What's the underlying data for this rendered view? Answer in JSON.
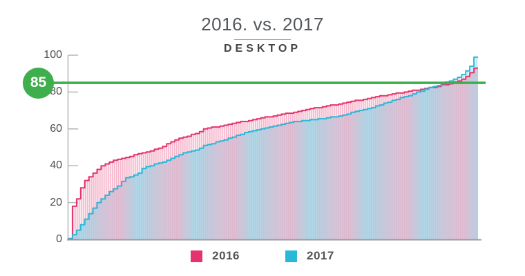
{
  "header": {
    "title": "2016. vs. 2017",
    "subtitle": "DESKTOP"
  },
  "chart_data": {
    "type": "area",
    "subtype": "cumulative-step-comparison-striped-bars",
    "title": "2016. vs. 2017",
    "subtitle": "DESKTOP",
    "xlabel": "",
    "ylabel": "",
    "ylim": [
      0,
      100
    ],
    "grid": false,
    "legend_position": "bottom",
    "y_axis": {
      "ticks": [
        100,
        80,
        60,
        40,
        20,
        0
      ]
    },
    "threshold_line": {
      "value": 85,
      "label": "85",
      "color": "#3fae4c"
    },
    "axis_color": "#b7babc",
    "baseline_color": "#9a9a9a",
    "series": [
      {
        "name": "2016",
        "color": "#e5336d",
        "values": [
          0.5,
          18,
          22,
          28,
          32,
          34,
          36,
          38,
          40,
          41,
          42,
          43,
          43.5,
          44,
          44.5,
          45,
          46,
          46.5,
          47,
          47.5,
          48,
          49,
          49.5,
          50.5,
          52,
          53,
          54,
          55,
          55.5,
          56,
          57,
          57.5,
          58.5,
          60,
          60.5,
          61,
          61,
          61.5,
          62,
          62.5,
          63,
          63.5,
          64,
          64,
          64.5,
          65,
          65.5,
          66,
          66.5,
          66.5,
          67,
          67.5,
          68,
          68.5,
          68.5,
          69,
          69.5,
          70,
          70.5,
          71,
          71.5,
          71.5,
          72,
          72.5,
          73,
          73,
          73.5,
          74,
          74.5,
          75,
          75.5,
          75.5,
          76,
          76.5,
          77,
          77.5,
          78,
          78,
          78.5,
          79,
          79.5,
          79.5,
          80,
          80.5,
          81,
          81,
          81.5,
          82,
          82.5,
          82.5,
          83,
          84,
          84,
          84.5,
          85.5,
          86,
          87,
          88.5,
          90.5,
          93
        ]
      },
      {
        "name": "2017",
        "color": "#29b8d8",
        "values": [
          0.3,
          2.5,
          5,
          8,
          11,
          14,
          17,
          20,
          22,
          24,
          26,
          27.5,
          29,
          31.5,
          33.5,
          34,
          35,
          36,
          38.5,
          39.5,
          40,
          41,
          41.5,
          42,
          43,
          44,
          45,
          46,
          47,
          47.5,
          48,
          48.5,
          49.5,
          51,
          51.5,
          52,
          53,
          53.5,
          54,
          55,
          55.5,
          56.5,
          57,
          58,
          58.5,
          59,
          59.5,
          60,
          60.5,
          61,
          61.5,
          62,
          62.5,
          63,
          63.5,
          64,
          64,
          64.5,
          64.5,
          65,
          65,
          65.5,
          65.5,
          66,
          66.5,
          66.5,
          67,
          67.5,
          68,
          69,
          69.5,
          70,
          70.5,
          71,
          71.5,
          72.5,
          73,
          74,
          74.5,
          75.5,
          76,
          77,
          77.5,
          78,
          79,
          80,
          80.5,
          81.5,
          82.5,
          83,
          83.5,
          84.5,
          85.5,
          86,
          87,
          88,
          89.5,
          91.5,
          94,
          99
        ]
      }
    ]
  }
}
